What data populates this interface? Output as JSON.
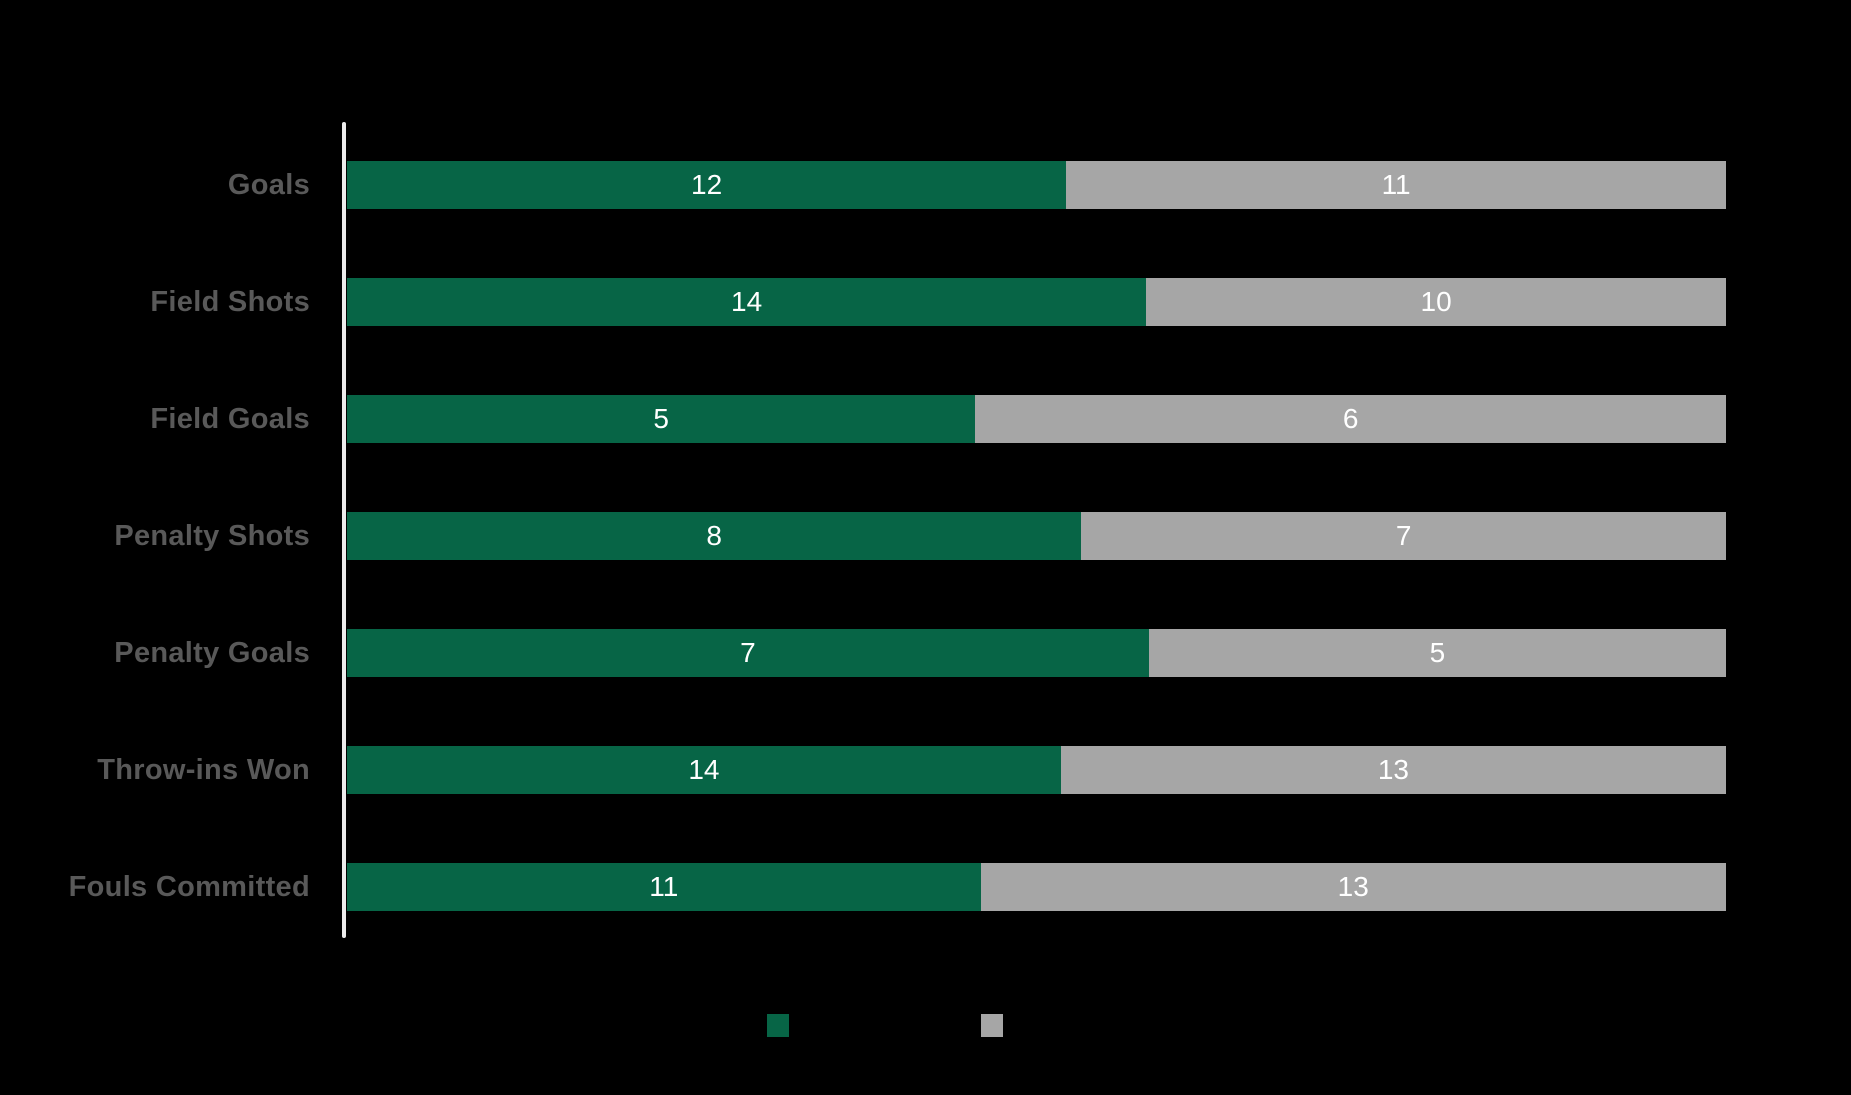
{
  "page": {
    "background_color": "#000000"
  },
  "chart_data": {
    "type": "bar",
    "orientation": "horizontal",
    "variant": "100%-stacked",
    "categories": [
      "Goals",
      "Field Shots",
      "Field Goals",
      "Penalty Shots",
      "Penalty Goals",
      "Throw-ins Won",
      "Fouls Committed"
    ],
    "series": [
      {
        "name": "green",
        "color": "#076546",
        "values": [
          12,
          14,
          5,
          8,
          7,
          14,
          11
        ]
      },
      {
        "name": "gray",
        "color": "#a6a6a6",
        "values": [
          11,
          10,
          6,
          7,
          5,
          13,
          13
        ]
      }
    ],
    "value_label_color": "#ffffff",
    "category_label_color": "#595959",
    "axis_line_color": "#ececec",
    "legend": {
      "position": "bottom-center",
      "entries": [
        {
          "name": "green",
          "swatch_color": "#076546"
        },
        {
          "name": "gray",
          "swatch_color": "#a6a6a6"
        }
      ]
    }
  }
}
